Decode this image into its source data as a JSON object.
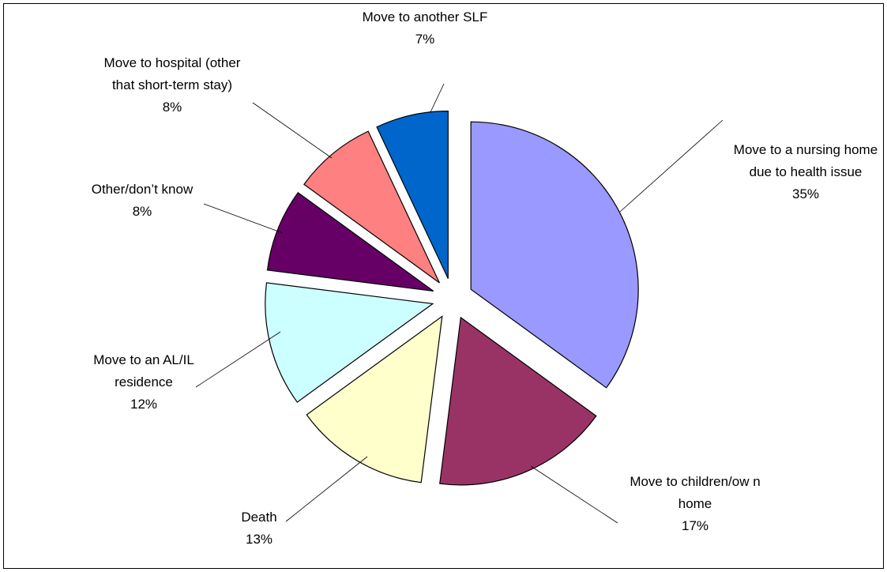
{
  "chart_data": {
    "type": "pie",
    "categories": [
      "Move to a nursing home due to health issue",
      "Move to children/ow n home",
      "Death",
      "Move to an AL/IL residence",
      "Other/don’t know",
      "Move to hospital (other that short-term stay)",
      "Move to another SLF"
    ],
    "values": [
      35,
      17,
      13,
      12,
      8,
      8,
      7
    ],
    "value_labels": [
      "35%",
      "17%",
      "13%",
      "12%",
      "8%",
      "8%",
      "7%"
    ],
    "colors": [
      "#9999ff",
      "#993366",
      "#ffffcc",
      "#ccffff",
      "#660066",
      "#ff8080",
      "#0066cc"
    ]
  }
}
